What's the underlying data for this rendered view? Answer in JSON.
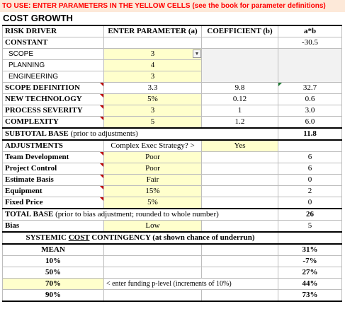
{
  "banner": "TO USE: ENTER PARAMETERS IN THE YELLOW CELLS (see the book for parameter definitions)",
  "title": "COST GROWTH",
  "headers": [
    "RISK DRIVER",
    "ENTER PARAMETER (a)",
    "COEFFICIENT (b)",
    "a*b"
  ],
  "constant": {
    "label": "CONSTANT",
    "ab": "-30.5"
  },
  "subitems": [
    {
      "label": "SCOPE",
      "param": "3"
    },
    {
      "label": "PLANNING",
      "param": "4"
    },
    {
      "label": "ENGINEERING",
      "param": "3"
    }
  ],
  "drivers": [
    {
      "label": "SCOPE DEFINITION",
      "param": "3.3",
      "coef": "9.8",
      "ab": "32.7"
    },
    {
      "label": "NEW TECHNOLOGY",
      "param": "5%",
      "coef": "0.12",
      "ab": "0.6"
    },
    {
      "label": "PROCESS SEVERITY",
      "param": "3",
      "coef": "1",
      "ab": "3.0"
    },
    {
      "label": "COMPLEXITY",
      "param": "5",
      "coef": "1.2",
      "ab": "6.0"
    }
  ],
  "subtotal": {
    "label_bold": "SUBTOTAL BASE",
    "label_rest": " (prior to adjustments)",
    "value": "11.8"
  },
  "adjustments": {
    "label": "ADJUSTMENTS",
    "prompt": "Complex Exec Strategy? >",
    "answer": "Yes"
  },
  "adjust_rows": [
    {
      "label": "Team Development",
      "param": "Poor",
      "value": "6"
    },
    {
      "label": "Project Control",
      "param": "Poor",
      "value": "6"
    },
    {
      "label": "Estimate Basis",
      "param": "Fair",
      "value": "0"
    },
    {
      "label": "Equipment",
      "param": "15%",
      "value": "2"
    },
    {
      "label": "Fixed Price",
      "param": "5%",
      "value": "0"
    }
  ],
  "total": {
    "label_bold": "TOTAL BASE",
    "label_rest": " (prior to bias adjustment; rounded to whole number)",
    "value": "26"
  },
  "bias": {
    "label": "Bias",
    "param": "Low",
    "value": "5"
  },
  "systemic": {
    "pre": "SYSTEMIC ",
    "underlined": "COST",
    "post": " CONTINGENCY (at shown chance of underrun)"
  },
  "contingency": [
    {
      "label": "MEAN",
      "value": "31%"
    },
    {
      "label": "10%",
      "value": "-7%"
    },
    {
      "label": "50%",
      "value": "27%"
    },
    {
      "label": "70%",
      "value": "44%",
      "note": "< enter funding p-level (increments of 10%)"
    },
    {
      "label": "90%",
      "value": "73%"
    }
  ],
  "colors": {
    "banner_bg": "#fde9d9",
    "banner_text": "#ff0000",
    "input_yellow": "#ffffcc",
    "grey": "#f2f2f2"
  }
}
